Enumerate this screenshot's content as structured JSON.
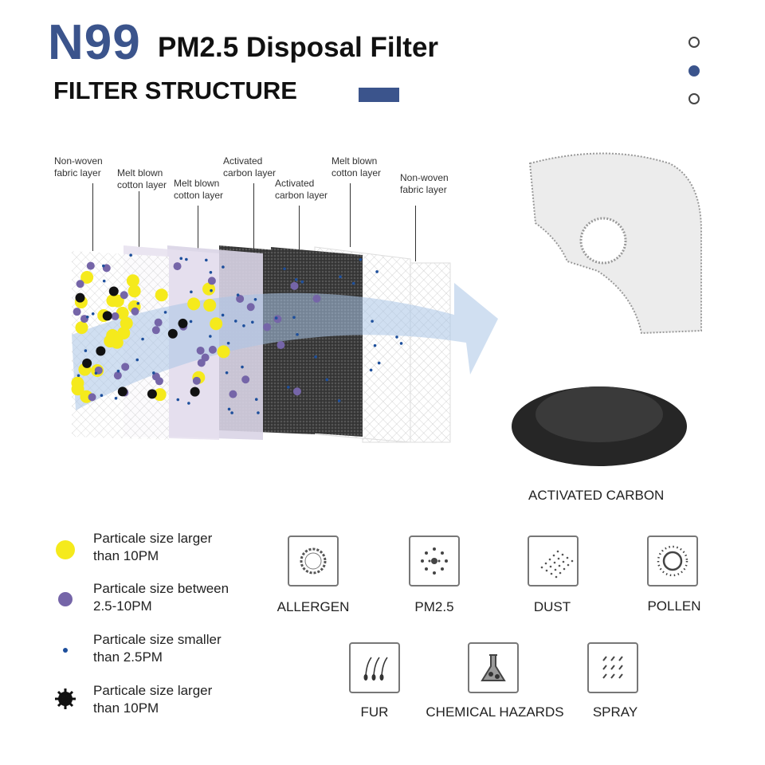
{
  "header": {
    "model": "N99",
    "subtitle": "PM2.5 Disposal Filter",
    "section": "FILTER STRUCTURE",
    "accent": "#3b548c"
  },
  "pager": {
    "active_index": 1,
    "count": 3
  },
  "layers": [
    {
      "label": "Non-woven\nfabric layer"
    },
    {
      "label": "Melt blown\ncotton layer"
    },
    {
      "label": "Melt blown\ncotton layer"
    },
    {
      "label": "Activated\ncarbon layer"
    },
    {
      "label": "Activated\ncarbon layer"
    },
    {
      "label": "Melt blown\ncotton layer"
    },
    {
      "label": "Non-woven\nfabric layer"
    }
  ],
  "carbon_label": "ACTIVATED CARBON",
  "legend": [
    {
      "icon": "yellow-circle-icon",
      "text": "Particale size larger\nthan 10PM",
      "color": "#f5ea1c"
    },
    {
      "icon": "purple-circle-icon",
      "text": "Particale size between\n2.5-10PM",
      "color": "#7565a8"
    },
    {
      "icon": "blue-dot-icon",
      "text": "Particale size smaller\nthan 2.5PM",
      "color": "#1d4f9c"
    },
    {
      "icon": "black-gear-icon",
      "text": "Particale size larger\nthan 10PM",
      "color": "#111111"
    }
  ],
  "filters": [
    {
      "icon": "allergen-icon",
      "label": "ALLERGEN"
    },
    {
      "icon": "pm25-icon",
      "label": "PM2.5"
    },
    {
      "icon": "dust-icon",
      "label": "DUST"
    },
    {
      "icon": "pollen-icon",
      "label": "POLLEN"
    },
    {
      "icon": "fur-icon",
      "label": "FUR"
    },
    {
      "icon": "flask-icon",
      "label": "CHEMICAL HAZARDS"
    },
    {
      "icon": "spray-icon",
      "label": "SPRAY"
    }
  ]
}
